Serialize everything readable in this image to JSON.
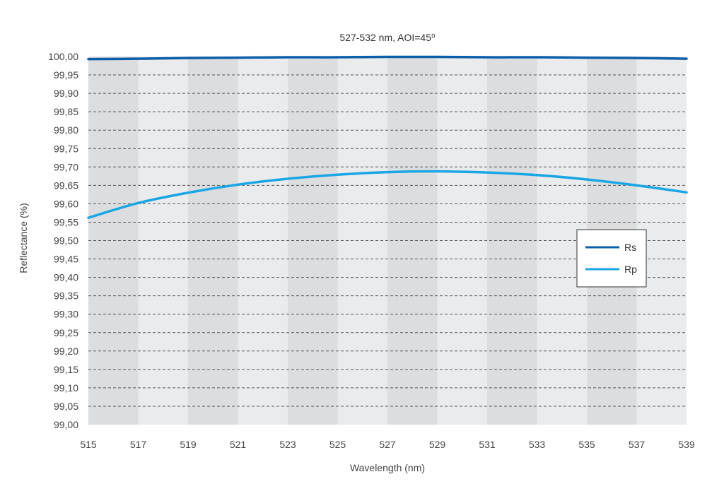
{
  "chart_data": {
    "type": "line",
    "title": "527-532 nm, AOI=45⁰",
    "xlabel": "Wavelength (nm)",
    "ylabel": "Reflectance (%)",
    "xlim": [
      515,
      539
    ],
    "ylim": [
      99.0,
      100.0
    ],
    "x_ticks": [
      515,
      517,
      519,
      521,
      523,
      525,
      527,
      529,
      531,
      533,
      535,
      537,
      539
    ],
    "x_tick_labels": [
      "515",
      "517",
      "519",
      "521",
      "523",
      "525",
      "527",
      "529",
      "531",
      "533",
      "535",
      "537",
      "539"
    ],
    "y_ticks": [
      99.0,
      99.05,
      99.1,
      99.15,
      99.2,
      99.25,
      99.3,
      99.35,
      99.4,
      99.45,
      99.5,
      99.55,
      99.6,
      99.65,
      99.7,
      99.75,
      99.8,
      99.85,
      99.9,
      99.95,
      100.0
    ],
    "y_tick_labels": [
      "99,00",
      "99,05",
      "99,10",
      "99,15",
      "99,20",
      "99,25",
      "99,30",
      "99,35",
      "99,40",
      "99,45",
      "99,50",
      "99,55",
      "99,60",
      "99,65",
      "99,70",
      "99,75",
      "99,80",
      "99,85",
      "99,90",
      "99,95",
      "100,00"
    ],
    "grid": true,
    "legend_position": "right",
    "series": [
      {
        "name": "Rs",
        "color": "#0a5fa8",
        "x": [
          515,
          517,
          519,
          521,
          523,
          525,
          527,
          529,
          531,
          533,
          535,
          537,
          539
        ],
        "y": [
          99.993,
          99.994,
          99.996,
          99.997,
          99.998,
          99.998,
          99.999,
          99.999,
          99.998,
          99.998,
          99.997,
          99.996,
          99.994
        ]
      },
      {
        "name": "Rp",
        "color": "#1aa6e4",
        "x": [
          515,
          517,
          519,
          521,
          523,
          525,
          527,
          529,
          531,
          533,
          535,
          537,
          539
        ],
        "y": [
          99.562,
          99.602,
          99.63,
          99.652,
          99.668,
          99.679,
          99.686,
          99.688,
          99.685,
          99.678,
          99.666,
          99.65,
          99.631
        ]
      }
    ]
  }
}
